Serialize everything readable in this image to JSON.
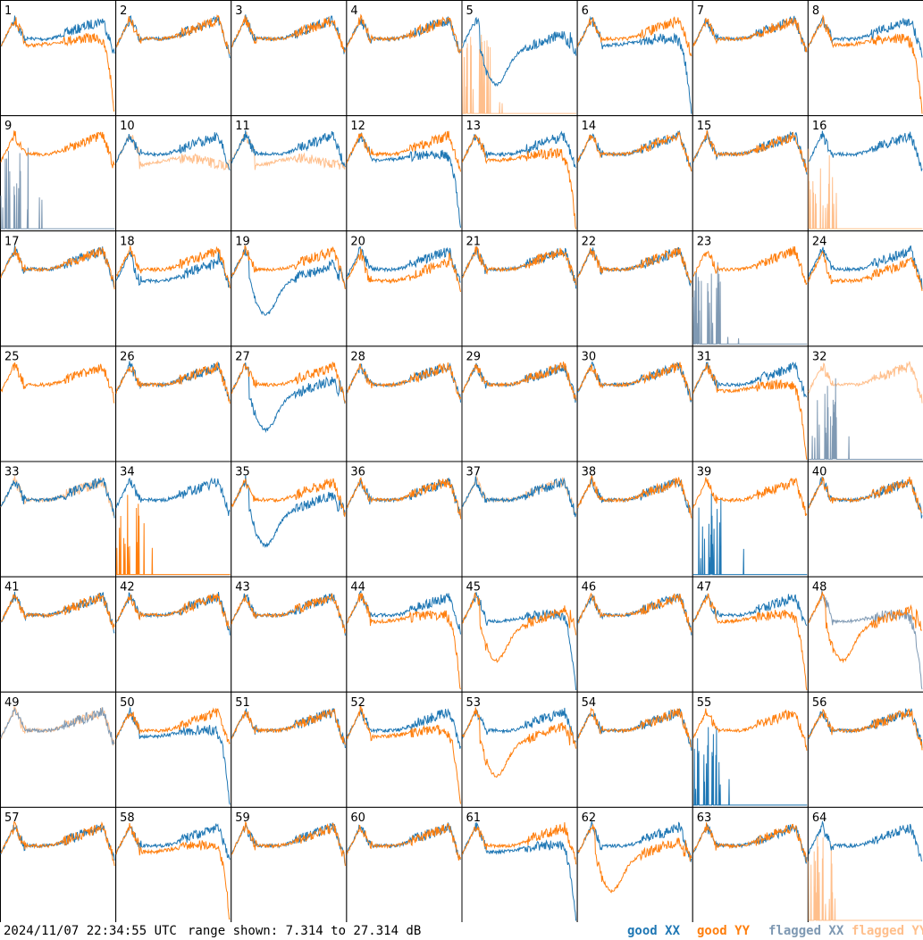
{
  "footer": {
    "timestamp": "2024/11/07 22:34:55 UTC",
    "range": "range shown: 7.314 to 27.314 dB",
    "legend": [
      {
        "label": "good XX",
        "color": "#1f77b4"
      },
      {
        "label": "good YY",
        "color": "#ff7f0e"
      },
      {
        "label": "flagged XX",
        "color": "#7f99b3"
      },
      {
        "label": "flagged YY",
        "color": "#ffbf8c"
      }
    ]
  },
  "chart_data": {
    "type": "line",
    "layout": "8x8 small multiples",
    "y_range_db": [
      7.314,
      27.314
    ],
    "series_names": [
      "good XX",
      "good YY",
      "flagged XX",
      "flagged YY"
    ],
    "panels": [
      {
        "id": "1",
        "xx": "good",
        "yy": "good",
        "xx_shape": "normal",
        "yy_shape": "flat_drop"
      },
      {
        "id": "2",
        "xx": "good",
        "yy": "good",
        "xx_shape": "normal",
        "yy_shape": "normal"
      },
      {
        "id": "3",
        "xx": "good",
        "yy": "good",
        "xx_shape": "normal",
        "yy_shape": "normal"
      },
      {
        "id": "4",
        "xx": "good",
        "yy": "good",
        "xx_shape": "normal",
        "yy_shape": "normal"
      },
      {
        "id": "5",
        "xx": "good",
        "yy": "flagged",
        "xx_shape": "dip",
        "yy_shape": "spikes"
      },
      {
        "id": "6",
        "xx": "good",
        "yy": "good",
        "xx_shape": "flat_drop",
        "yy_shape": "normal"
      },
      {
        "id": "7",
        "xx": "good",
        "yy": "good",
        "xx_shape": "normal",
        "yy_shape": "normal"
      },
      {
        "id": "8",
        "xx": "good",
        "yy": "good",
        "xx_shape": "normal",
        "yy_shape": "flat_drop"
      },
      {
        "id": "9",
        "xx": "flagged",
        "yy": "good",
        "xx_shape": "spikes",
        "yy_shape": "normal"
      },
      {
        "id": "10",
        "xx": "good",
        "yy": "flagged",
        "xx_shape": "normal",
        "yy_shape": "flat_low"
      },
      {
        "id": "11",
        "xx": "good",
        "yy": "flagged",
        "xx_shape": "normal",
        "yy_shape": "flat_low"
      },
      {
        "id": "12",
        "xx": "good",
        "yy": "good",
        "xx_shape": "flat_drop",
        "yy_shape": "normal"
      },
      {
        "id": "13",
        "xx": "good",
        "yy": "good",
        "xx_shape": "normal",
        "yy_shape": "flat_drop"
      },
      {
        "id": "14",
        "xx": "good",
        "yy": "good",
        "xx_shape": "normal",
        "yy_shape": "normal"
      },
      {
        "id": "15",
        "xx": "good",
        "yy": "good",
        "xx_shape": "normal",
        "yy_shape": "normal"
      },
      {
        "id": "16",
        "xx": "good",
        "yy": "flagged",
        "xx_shape": "normal",
        "yy_shape": "spikes"
      },
      {
        "id": "17",
        "xx": "good",
        "yy": "good",
        "xx_shape": "normal",
        "yy_shape": "normal"
      },
      {
        "id": "18",
        "xx": "good",
        "yy": "good",
        "xx_shape": "low",
        "yy_shape": "normal"
      },
      {
        "id": "19",
        "xx": "good",
        "yy": "good",
        "xx_shape": "dip",
        "yy_shape": "normal"
      },
      {
        "id": "20",
        "xx": "good",
        "yy": "good",
        "xx_shape": "normal",
        "yy_shape": "low"
      },
      {
        "id": "21",
        "xx": "good",
        "yy": "good",
        "xx_shape": "normal",
        "yy_shape": "normal"
      },
      {
        "id": "22",
        "xx": "good",
        "yy": "good",
        "xx_shape": "normal",
        "yy_shape": "normal"
      },
      {
        "id": "23",
        "xx": "flagged",
        "yy": "good",
        "xx_shape": "spikes",
        "yy_shape": "normal"
      },
      {
        "id": "24",
        "xx": "good",
        "yy": "good",
        "xx_shape": "normal",
        "yy_shape": "low"
      },
      {
        "id": "25",
        "xx": "good",
        "yy": "good",
        "xx_shape": "none",
        "yy_shape": "normal"
      },
      {
        "id": "26",
        "xx": "good",
        "yy": "good",
        "xx_shape": "normal",
        "yy_shape": "normal"
      },
      {
        "id": "27",
        "xx": "good",
        "yy": "good",
        "xx_shape": "dip",
        "yy_shape": "normal"
      },
      {
        "id": "28",
        "xx": "good",
        "yy": "good",
        "xx_shape": "normal",
        "yy_shape": "normal"
      },
      {
        "id": "29",
        "xx": "good",
        "yy": "good",
        "xx_shape": "normal",
        "yy_shape": "normal"
      },
      {
        "id": "30",
        "xx": "good",
        "yy": "good",
        "xx_shape": "normal",
        "yy_shape": "normal"
      },
      {
        "id": "31",
        "xx": "good",
        "yy": "good",
        "xx_shape": "normal",
        "yy_shape": "flat_drop"
      },
      {
        "id": "32",
        "xx": "flagged",
        "yy": "flagged",
        "xx_shape": "spikes",
        "yy_shape": "normal"
      },
      {
        "id": "33",
        "xx": "good",
        "yy": "flagged",
        "xx_shape": "normal",
        "yy_shape": "normal"
      },
      {
        "id": "34",
        "xx": "good",
        "yy": "good",
        "xx_shape": "normal",
        "yy_shape": "spikes"
      },
      {
        "id": "35",
        "xx": "good",
        "yy": "good",
        "xx_shape": "dip",
        "yy_shape": "normal"
      },
      {
        "id": "36",
        "xx": "good",
        "yy": "good",
        "xx_shape": "normal",
        "yy_shape": "normal"
      },
      {
        "id": "37",
        "xx": "good",
        "yy": "flagged",
        "xx_shape": "normal",
        "yy_shape": "normal"
      },
      {
        "id": "38",
        "xx": "good",
        "yy": "good",
        "xx_shape": "normal",
        "yy_shape": "normal"
      },
      {
        "id": "39",
        "xx": "good",
        "yy": "good",
        "xx_shape": "spikes",
        "yy_shape": "normal"
      },
      {
        "id": "40",
        "xx": "good",
        "yy": "good",
        "xx_shape": "normal",
        "yy_shape": "normal"
      },
      {
        "id": "41",
        "xx": "good",
        "yy": "good",
        "xx_shape": "normal",
        "yy_shape": "normal"
      },
      {
        "id": "42",
        "xx": "good",
        "yy": "good",
        "xx_shape": "normal",
        "yy_shape": "normal"
      },
      {
        "id": "43",
        "xx": "good",
        "yy": "good",
        "xx_shape": "normal",
        "yy_shape": "normal"
      },
      {
        "id": "44",
        "xx": "good",
        "yy": "good",
        "xx_shape": "normal",
        "yy_shape": "flat_drop"
      },
      {
        "id": "45",
        "xx": "good",
        "yy": "good",
        "xx_shape": "flat_drop",
        "yy_shape": "dip"
      },
      {
        "id": "46",
        "xx": "good",
        "yy": "good",
        "xx_shape": "normal",
        "yy_shape": "normal"
      },
      {
        "id": "47",
        "xx": "good",
        "yy": "good",
        "xx_shape": "normal",
        "yy_shape": "flat_drop"
      },
      {
        "id": "48",
        "xx": "flagged",
        "yy": "good",
        "xx_shape": "flat_drop",
        "yy_shape": "dip"
      },
      {
        "id": "49",
        "xx": "flagged",
        "yy": "flagged",
        "xx_shape": "normal",
        "yy_shape": "normal"
      },
      {
        "id": "50",
        "xx": "good",
        "yy": "good",
        "xx_shape": "flat_drop",
        "yy_shape": "normal"
      },
      {
        "id": "51",
        "xx": "good",
        "yy": "good",
        "xx_shape": "normal",
        "yy_shape": "normal"
      },
      {
        "id": "52",
        "xx": "good",
        "yy": "good",
        "xx_shape": "normal",
        "yy_shape": "flat_drop"
      },
      {
        "id": "53",
        "xx": "good",
        "yy": "good",
        "xx_shape": "normal",
        "yy_shape": "dip"
      },
      {
        "id": "54",
        "xx": "good",
        "yy": "good",
        "xx_shape": "normal",
        "yy_shape": "normal"
      },
      {
        "id": "55",
        "xx": "good",
        "yy": "good",
        "xx_shape": "spikes",
        "yy_shape": "normal"
      },
      {
        "id": "56",
        "xx": "good",
        "yy": "good",
        "xx_shape": "normal",
        "yy_shape": "normal"
      },
      {
        "id": "57",
        "xx": "good",
        "yy": "good",
        "xx_shape": "normal",
        "yy_shape": "normal"
      },
      {
        "id": "58",
        "xx": "good",
        "yy": "good",
        "xx_shape": "normal",
        "yy_shape": "flat_drop"
      },
      {
        "id": "59",
        "xx": "good",
        "yy": "good",
        "xx_shape": "normal",
        "yy_shape": "normal"
      },
      {
        "id": "60",
        "xx": "good",
        "yy": "good",
        "xx_shape": "normal",
        "yy_shape": "normal"
      },
      {
        "id": "61",
        "xx": "good",
        "yy": "good",
        "xx_shape": "flat_drop",
        "yy_shape": "normal"
      },
      {
        "id": "62",
        "xx": "good",
        "yy": "good",
        "xx_shape": "normal",
        "yy_shape": "dip"
      },
      {
        "id": "63",
        "xx": "good",
        "yy": "good",
        "xx_shape": "normal",
        "yy_shape": "normal"
      },
      {
        "id": "64",
        "xx": "good",
        "yy": "flagged",
        "xx_shape": "normal",
        "yy_shape": "spikes"
      }
    ]
  }
}
